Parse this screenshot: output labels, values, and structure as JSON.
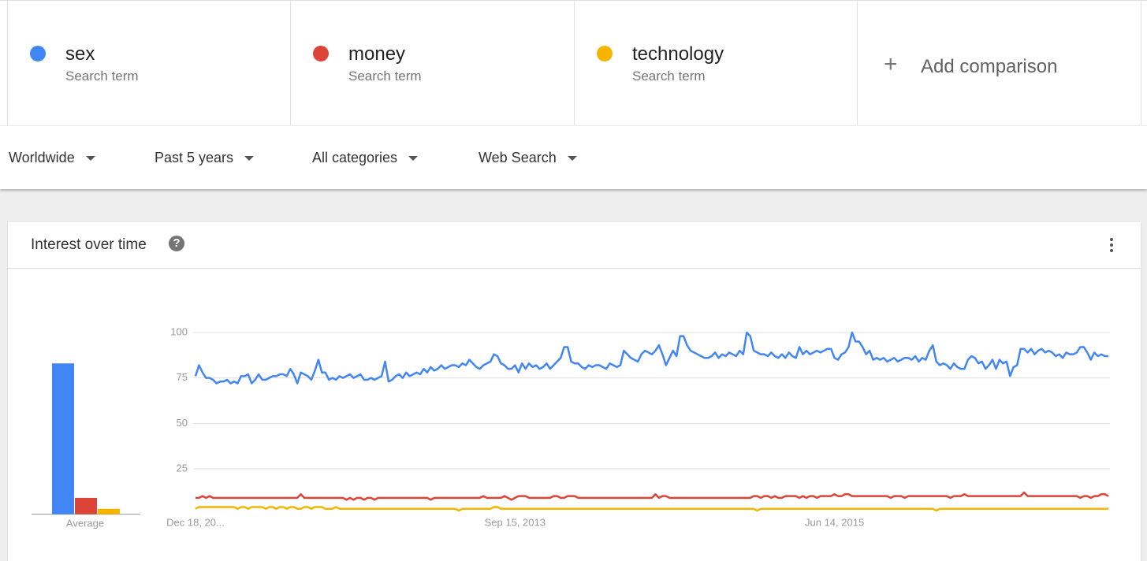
{
  "search_term_label": "Search term",
  "add_comparison": "Add comparison",
  "filters": [
    "Worldwide",
    "Past 5 years",
    "All categories",
    "Web Search"
  ],
  "chart_data": {
    "type": "line",
    "title": "Interest over time",
    "average_label": "Average",
    "categories": [
      "Dec 18, 20...",
      null,
      null,
      null,
      null,
      null,
      null,
      null,
      null,
      null,
      null,
      null,
      null,
      null,
      null,
      null,
      null,
      null,
      null,
      null,
      null,
      null,
      null,
      null,
      null,
      null,
      null,
      null,
      null,
      null,
      null,
      null,
      null,
      null,
      null,
      null,
      null,
      null,
      null,
      null,
      null,
      null,
      null,
      null,
      null,
      null,
      null,
      null,
      null,
      null,
      null,
      null,
      null,
      null,
      null,
      null,
      null,
      null,
      null,
      null,
      null,
      null,
      null,
      null,
      null,
      null,
      null,
      null,
      null,
      null,
      null,
      null,
      null,
      null,
      null,
      null,
      null,
      null,
      null,
      null,
      null,
      null,
      null,
      null,
      null,
      null,
      null,
      null,
      null,
      null,
      null,
      "Sep 15, 2013",
      null,
      null,
      null,
      null,
      null,
      null,
      null,
      null,
      null,
      null,
      null,
      null,
      null,
      null,
      null,
      null,
      null,
      null,
      null,
      null,
      null,
      null,
      null,
      null,
      null,
      null,
      null,
      null,
      null,
      null,
      null,
      null,
      null,
      null,
      null,
      null,
      null,
      null,
      null,
      null,
      null,
      null,
      null,
      null,
      null,
      null,
      null,
      null,
      null,
      null,
      null,
      null,
      null,
      null,
      null,
      null,
      null,
      null,
      null,
      null,
      null,
      null,
      null,
      null,
      null,
      null,
      null,
      null,
      null,
      null,
      null,
      null,
      null,
      null,
      null,
      null,
      null,
      null,
      null,
      null,
      null,
      null,
      null,
      null,
      null,
      null,
      null,
      null,
      null,
      null,
      "Jun 14, 2015",
      null,
      null,
      null,
      null,
      null,
      null,
      null,
      null,
      null,
      null,
      null,
      null,
      null,
      null,
      null,
      null,
      null,
      null,
      null,
      null,
      null,
      null,
      null,
      null,
      null,
      null,
      null,
      null,
      null,
      null,
      null,
      null,
      null,
      null,
      null,
      null,
      null,
      null,
      null,
      null,
      null,
      null,
      null,
      null,
      null,
      null,
      null,
      null,
      null,
      null,
      null,
      null,
      null,
      null,
      null,
      null,
      null,
      null,
      null,
      null,
      null,
      null,
      null,
      null,
      null,
      null,
      null,
      null,
      null,
      null,
      null,
      null,
      null,
      null,
      null,
      null,
      null,
      null
    ],
    "series": [
      {
        "name": "sex",
        "color": "#4285f4",
        "average": 83,
        "values": [
          76,
          82,
          78,
          75,
          75,
          74,
          72,
          73,
          73,
          74,
          72,
          73,
          72,
          76,
          76,
          77,
          72,
          74,
          77,
          74,
          74,
          75,
          76,
          76,
          77,
          77,
          76,
          80,
          77,
          72,
          78,
          77,
          76,
          74,
          79,
          85,
          78,
          78,
          74,
          75,
          74,
          76,
          75,
          76,
          77,
          75,
          76,
          77,
          74,
          74,
          75,
          74,
          75,
          76,
          84,
          73,
          74,
          76,
          77,
          75,
          78,
          76,
          77,
          78,
          77,
          80,
          78,
          81,
          79,
          80,
          82,
          80,
          81,
          82,
          82,
          81,
          83,
          82,
          85,
          83,
          81,
          80,
          82,
          83,
          84,
          88,
          87,
          83,
          82,
          80,
          80,
          82,
          78,
          83,
          80,
          83,
          81,
          82,
          80,
          81,
          83,
          80,
          82,
          84,
          86,
          92,
          92,
          84,
          83,
          83,
          81,
          80,
          82,
          81,
          82,
          82,
          81,
          80,
          83,
          82,
          81,
          82,
          90,
          88,
          86,
          85,
          84,
          88,
          90,
          89,
          88,
          90,
          93,
          88,
          82,
          86,
          90,
          87,
          98,
          98,
          93,
          90,
          89,
          88,
          87,
          86,
          86,
          87,
          89,
          86,
          88,
          87,
          89,
          88,
          87,
          90,
          88,
          100,
          98,
          90,
          89,
          88,
          88,
          87,
          89,
          87,
          86,
          88,
          86,
          89,
          87,
          86,
          92,
          88,
          90,
          88,
          89,
          90,
          89,
          90,
          91,
          91,
          86,
          85,
          88,
          89,
          92,
          100,
          95,
          95,
          92,
          88,
          90,
          85,
          86,
          85,
          86,
          84,
          85,
          86,
          84,
          85,
          86,
          86,
          85,
          87,
          84,
          86,
          85,
          90,
          93,
          84,
          82,
          83,
          82,
          80,
          83,
          81,
          80,
          80,
          85,
          87,
          86,
          83,
          84,
          80,
          82,
          85,
          80,
          85,
          83,
          84,
          76,
          81,
          82,
          91,
          91,
          89,
          91,
          88,
          90,
          91,
          89,
          90,
          89,
          87,
          88,
          86,
          89,
          88,
          88,
          89,
          92,
          92,
          89,
          85,
          89,
          87,
          88,
          87,
          87
        ]
      },
      {
        "name": "money",
        "color": "#db4437",
        "average": 9,
        "values": [
          9,
          9,
          10,
          9,
          10,
          9,
          9,
          9,
          9,
          9,
          9,
          9,
          9,
          9,
          9,
          9,
          9,
          9,
          9,
          9,
          9,
          9,
          9,
          9,
          9,
          9,
          9,
          9,
          9,
          9,
          11,
          9,
          9,
          9,
          9,
          9,
          9,
          9,
          9,
          9,
          9,
          9,
          9,
          8,
          9,
          8,
          9,
          9,
          8,
          9,
          9,
          8,
          9,
          9,
          9,
          9,
          9,
          9,
          9,
          9,
          9,
          9,
          9,
          9,
          9,
          9,
          9,
          8,
          9,
          9,
          9,
          9,
          9,
          9,
          9,
          9,
          9,
          9,
          9,
          9,
          9,
          9,
          10,
          9,
          9,
          9,
          9,
          9,
          10,
          9,
          8,
          9,
          10,
          10,
          10,
          9,
          9,
          9,
          9,
          9,
          9,
          9,
          10,
          10,
          9,
          9,
          10,
          10,
          10,
          9,
          9,
          9,
          9,
          9,
          9,
          9,
          9,
          9,
          9,
          9,
          9,
          9,
          9,
          9,
          9,
          9,
          9,
          9,
          9,
          9,
          9,
          11,
          9,
          10,
          10,
          9,
          9,
          9,
          9,
          9,
          9,
          9,
          9,
          9,
          9,
          9,
          9,
          9,
          9,
          9,
          9,
          9,
          9,
          9,
          9,
          9,
          9,
          9,
          9,
          10,
          10,
          9,
          10,
          10,
          9,
          10,
          9,
          9,
          10,
          10,
          10,
          10,
          9,
          10,
          9,
          10,
          10,
          9,
          10,
          10,
          10,
          10,
          11,
          10,
          10,
          11,
          11,
          10,
          10,
          10,
          10,
          10,
          10,
          10,
          10,
          10,
          10,
          10,
          9,
          10,
          10,
          10,
          9,
          10,
          10,
          10,
          10,
          10,
          10,
          10,
          10,
          10,
          10,
          10,
          10,
          9,
          10,
          10,
          10,
          11,
          10,
          10,
          10,
          10,
          10,
          10,
          10,
          10,
          10,
          10,
          10,
          10,
          10,
          10,
          10,
          10,
          12,
          10,
          10,
          10,
          10,
          10,
          10,
          10,
          10,
          10,
          10,
          10,
          10,
          10,
          10,
          10,
          9,
          10,
          10,
          9,
          10,
          10,
          11,
          11,
          10
        ]
      },
      {
        "name": "technology",
        "color": "#f4b400",
        "average": 3,
        "values": [
          3,
          4,
          4,
          4,
          4,
          4,
          4,
          4,
          4,
          4,
          4,
          4,
          3,
          4,
          4,
          3,
          4,
          4,
          4,
          4,
          3,
          4,
          4,
          3,
          4,
          4,
          3,
          4,
          4,
          3,
          3,
          4,
          4,
          3,
          4,
          4,
          4,
          3,
          3,
          3,
          4,
          3,
          3,
          3,
          3,
          3,
          3,
          3,
          3,
          3,
          3,
          3,
          3,
          3,
          3,
          3,
          3,
          3,
          3,
          3,
          3,
          3,
          3,
          3,
          3,
          3,
          3,
          3,
          3,
          3,
          3,
          3,
          3,
          3,
          3,
          2,
          3,
          3,
          3,
          3,
          3,
          3,
          3,
          3,
          3,
          4,
          4,
          3,
          3,
          3,
          3,
          3,
          3,
          3,
          3,
          3,
          3,
          3,
          3,
          3,
          3,
          3,
          3,
          3,
          3,
          3,
          3,
          3,
          3,
          3,
          3,
          3,
          3,
          3,
          3,
          3,
          3,
          3,
          3,
          3,
          3,
          3,
          3,
          3,
          3,
          3,
          3,
          3,
          3,
          3,
          3,
          3,
          3,
          3,
          3,
          3,
          3,
          3,
          3,
          3,
          3,
          3,
          3,
          3,
          3,
          3,
          3,
          3,
          3,
          3,
          3,
          3,
          3,
          3,
          3,
          3,
          3,
          3,
          3,
          3,
          2,
          3,
          3,
          3,
          3,
          3,
          3,
          3,
          3,
          3,
          3,
          3,
          3,
          3,
          3,
          3,
          3,
          3,
          3,
          3,
          3,
          3,
          3,
          3,
          3,
          3,
          3,
          3,
          3,
          3,
          3,
          3,
          3,
          3,
          3,
          3,
          3,
          3,
          3,
          3,
          3,
          3,
          3,
          3,
          3,
          3,
          3,
          3,
          3,
          3,
          3,
          2,
          3,
          3,
          3,
          3,
          3,
          3,
          3,
          3,
          3,
          3,
          3,
          3,
          3,
          3,
          3,
          3,
          3,
          3,
          3,
          3,
          3,
          3,
          3,
          3,
          3,
          3,
          3,
          3,
          3,
          3,
          3,
          3,
          3,
          3,
          3,
          3,
          3,
          3,
          3,
          3,
          3,
          3,
          3,
          3,
          3,
          3,
          3,
          3,
          3
        ]
      }
    ],
    "ylim": [
      0,
      100
    ],
    "yticks": [
      25,
      50,
      75,
      100
    ],
    "grid": true
  }
}
